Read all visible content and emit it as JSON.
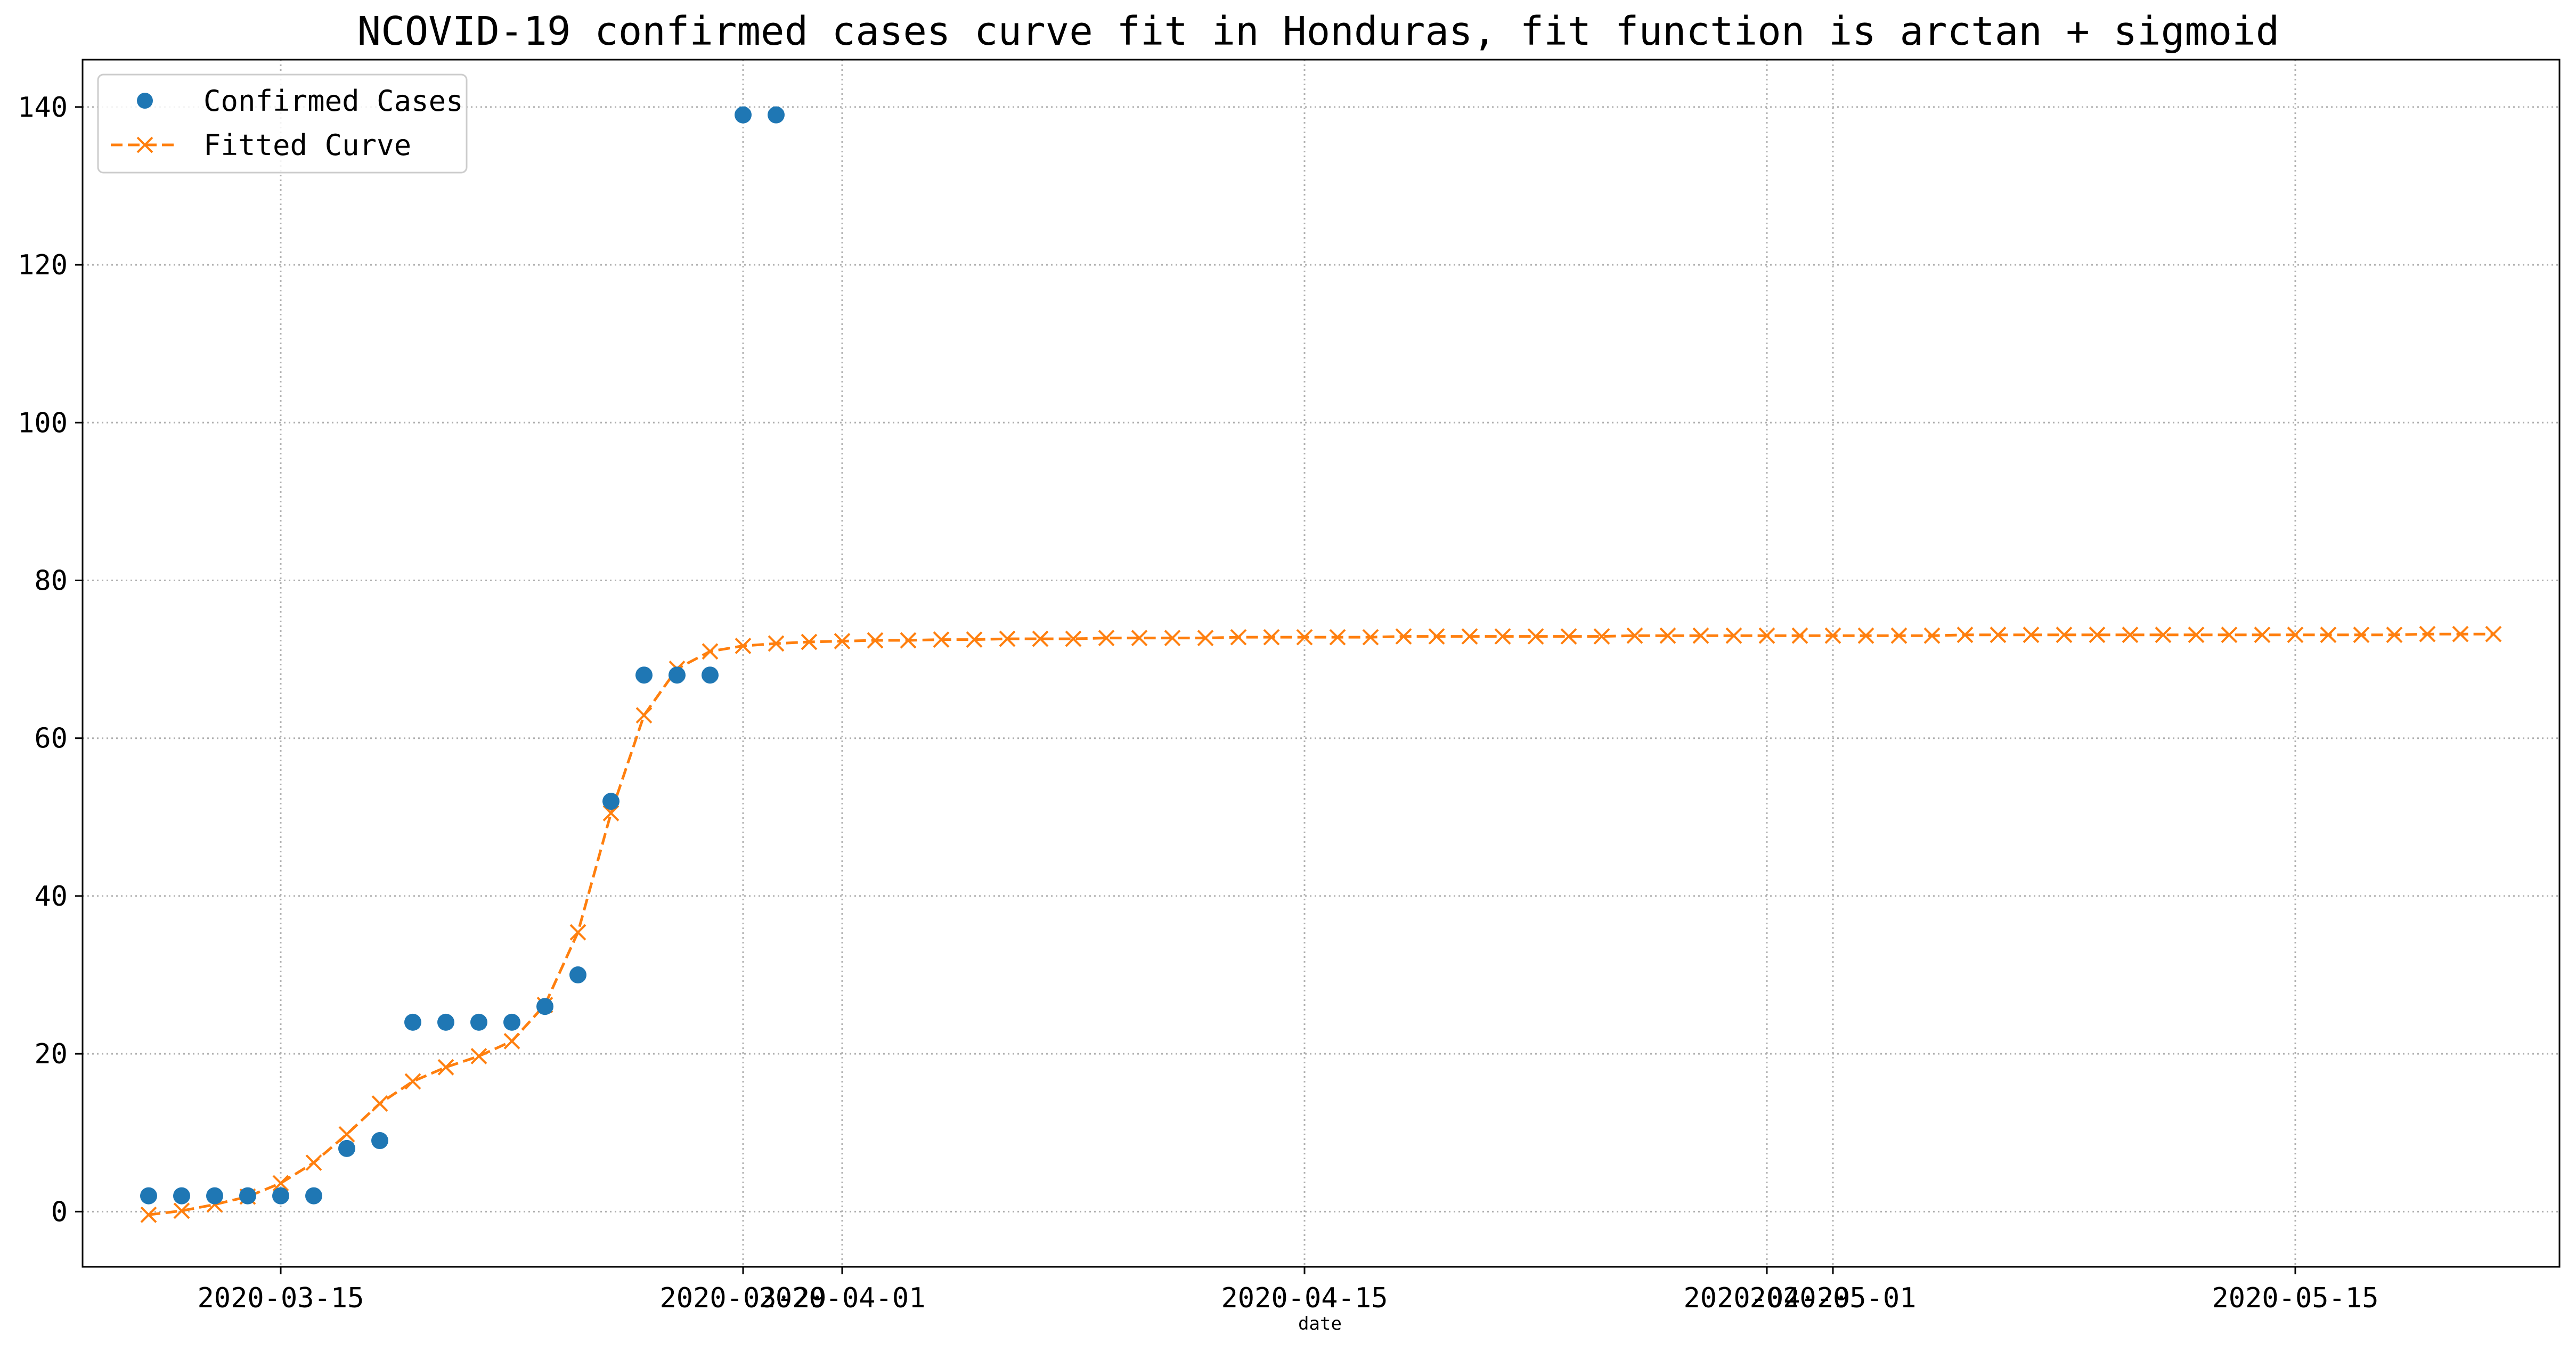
{
  "chart_data": {
    "type": "scatter+line",
    "title": "NCOVID-19 confirmed cases curve fit in Honduras, fit function is arctan + sigmoid",
    "xlabel": "date",
    "ylabel": "",
    "x_axis_type": "date",
    "xlim": [
      "2020-03-09",
      "2020-05-23"
    ],
    "ylim": [
      -7,
      146
    ],
    "grid": true,
    "legend_position": "top-left",
    "x_tick_labels": [
      {
        "date": "2020-03-15",
        "label": "2020-03-15"
      },
      {
        "date": "2020-03-29",
        "label": "2020-03-29"
      },
      {
        "date": "2020-04-01",
        "label": "2020-04-01"
      },
      {
        "date": "2020-04-15",
        "label": "2020-04-15"
      },
      {
        "date": "2020-04-29",
        "label": "2020-04-29"
      },
      {
        "date": "2020-05-01",
        "label": "2020-05-01"
      },
      {
        "date": "2020-05-15",
        "label": "2020-05-15"
      }
    ],
    "y_tick_labels": [
      0,
      20,
      40,
      60,
      80,
      100,
      120,
      140
    ],
    "series": [
      {
        "name": "Confirmed Cases",
        "style": "markers",
        "color": "#1f77b4",
        "points": [
          [
            "2020-03-11",
            2
          ],
          [
            "2020-03-12",
            2
          ],
          [
            "2020-03-13",
            2
          ],
          [
            "2020-03-14",
            2
          ],
          [
            "2020-03-15",
            2
          ],
          [
            "2020-03-16",
            2
          ],
          [
            "2020-03-17",
            8
          ],
          [
            "2020-03-18",
            9
          ],
          [
            "2020-03-19",
            24
          ],
          [
            "2020-03-20",
            24
          ],
          [
            "2020-03-21",
            24
          ],
          [
            "2020-03-22",
            24
          ],
          [
            "2020-03-23",
            26
          ],
          [
            "2020-03-24",
            30
          ],
          [
            "2020-03-25",
            52
          ],
          [
            "2020-03-26",
            68
          ],
          [
            "2020-03-27",
            68
          ],
          [
            "2020-03-28",
            68
          ],
          [
            "2020-03-29",
            139
          ],
          [
            "2020-03-30",
            139
          ]
        ]
      },
      {
        "name": "Fitted Curve",
        "style": "dashed-line-x-markers",
        "color": "#ff7f0e",
        "points": [
          [
            "2020-03-11",
            -0.4
          ],
          [
            "2020-03-12",
            0.1
          ],
          [
            "2020-03-13",
            0.9
          ],
          [
            "2020-03-14",
            1.9
          ],
          [
            "2020-03-15",
            3.6
          ],
          [
            "2020-03-16",
            6.2
          ],
          [
            "2020-03-17",
            9.8
          ],
          [
            "2020-03-18",
            13.7
          ],
          [
            "2020-03-19",
            16.5
          ],
          [
            "2020-03-20",
            18.3
          ],
          [
            "2020-03-21",
            19.7
          ],
          [
            "2020-03-22",
            21.6
          ],
          [
            "2020-03-23",
            26.2
          ],
          [
            "2020-03-24",
            35.4
          ],
          [
            "2020-03-25",
            50.5
          ],
          [
            "2020-03-26",
            62.9
          ],
          [
            "2020-03-27",
            68.8
          ],
          [
            "2020-03-28",
            71.0
          ],
          [
            "2020-03-29",
            71.7
          ],
          [
            "2020-03-30",
            72.0
          ],
          [
            "2020-03-31",
            72.2
          ],
          [
            "2020-04-01",
            72.3
          ],
          [
            "2020-04-02",
            72.4
          ],
          [
            "2020-04-03",
            72.4
          ],
          [
            "2020-04-04",
            72.5
          ],
          [
            "2020-04-05",
            72.5
          ],
          [
            "2020-04-06",
            72.6
          ],
          [
            "2020-04-07",
            72.6
          ],
          [
            "2020-04-08",
            72.6
          ],
          [
            "2020-04-09",
            72.7
          ],
          [
            "2020-04-10",
            72.7
          ],
          [
            "2020-04-11",
            72.7
          ],
          [
            "2020-04-12",
            72.7
          ],
          [
            "2020-04-13",
            72.8
          ],
          [
            "2020-04-14",
            72.8
          ],
          [
            "2020-04-15",
            72.8
          ],
          [
            "2020-04-16",
            72.8
          ],
          [
            "2020-04-17",
            72.8
          ],
          [
            "2020-04-18",
            72.9
          ],
          [
            "2020-04-19",
            72.9
          ],
          [
            "2020-04-20",
            72.9
          ],
          [
            "2020-04-21",
            72.9
          ],
          [
            "2020-04-22",
            72.9
          ],
          [
            "2020-04-23",
            72.9
          ],
          [
            "2020-04-24",
            72.9
          ],
          [
            "2020-04-25",
            73.0
          ],
          [
            "2020-04-26",
            73.0
          ],
          [
            "2020-04-27",
            73.0
          ],
          [
            "2020-04-28",
            73.0
          ],
          [
            "2020-04-29",
            73.0
          ],
          [
            "2020-04-30",
            73.0
          ],
          [
            "2020-05-01",
            73.0
          ],
          [
            "2020-05-02",
            73.0
          ],
          [
            "2020-05-03",
            73.0
          ],
          [
            "2020-05-04",
            73.0
          ],
          [
            "2020-05-05",
            73.1
          ],
          [
            "2020-05-06",
            73.1
          ],
          [
            "2020-05-07",
            73.1
          ],
          [
            "2020-05-08",
            73.1
          ],
          [
            "2020-05-09",
            73.1
          ],
          [
            "2020-05-10",
            73.1
          ],
          [
            "2020-05-11",
            73.1
          ],
          [
            "2020-05-12",
            73.1
          ],
          [
            "2020-05-13",
            73.1
          ],
          [
            "2020-05-14",
            73.1
          ],
          [
            "2020-05-15",
            73.1
          ],
          [
            "2020-05-16",
            73.1
          ],
          [
            "2020-05-17",
            73.1
          ],
          [
            "2020-05-18",
            73.1
          ],
          [
            "2020-05-19",
            73.2
          ],
          [
            "2020-05-20",
            73.2
          ],
          [
            "2020-05-21",
            73.2
          ]
        ]
      }
    ]
  }
}
